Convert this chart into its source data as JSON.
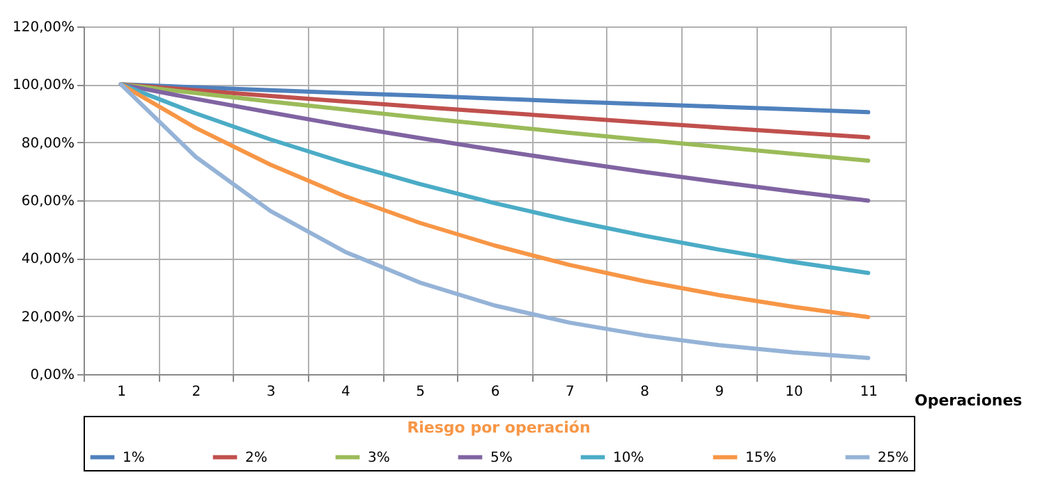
{
  "chart_data": {
    "type": "line",
    "xlabel": "Operaciones",
    "legend_title": "Riesgo por operación",
    "categories": [
      "1",
      "2",
      "3",
      "4",
      "5",
      "6",
      "7",
      "8",
      "9",
      "10",
      "11"
    ],
    "series": [
      {
        "name": "1%",
        "color": "#4f81bd",
        "values": [
          100,
          99,
          98.0,
          97.0,
          96.1,
          95.1,
          94.1,
          93.2,
          92.3,
          91.4,
          90.4
        ]
      },
      {
        "name": "2%",
        "color": "#c0504d",
        "values": [
          100,
          98,
          96.0,
          94.1,
          92.2,
          90.4,
          88.6,
          86.8,
          85.1,
          83.4,
          81.7
        ]
      },
      {
        "name": "3%",
        "color": "#9bbb59",
        "values": [
          100,
          97,
          94.1,
          91.3,
          88.5,
          85.9,
          83.3,
          80.8,
          78.4,
          76.0,
          73.7
        ]
      },
      {
        "name": "5%",
        "color": "#8064a2",
        "values": [
          100,
          95,
          90.3,
          85.7,
          81.5,
          77.4,
          73.5,
          69.8,
          66.3,
          63.0,
          59.9
        ]
      },
      {
        "name": "10%",
        "color": "#4bacc6",
        "values": [
          100,
          90,
          81.0,
          72.9,
          65.6,
          59.0,
          53.1,
          47.8,
          43.0,
          38.7,
          34.9
        ]
      },
      {
        "name": "15%",
        "color": "#f79646",
        "values": [
          100,
          85,
          72.3,
          61.4,
          52.2,
          44.4,
          37.7,
          32.1,
          27.3,
          23.2,
          19.7
        ]
      },
      {
        "name": "25%",
        "color": "#95b3d7",
        "values": [
          100,
          75,
          56.3,
          42.2,
          31.6,
          23.7,
          17.8,
          13.4,
          10.0,
          7.5,
          5.6
        ]
      }
    ],
    "ylim": [
      0,
      120
    ],
    "yticks": [
      {
        "value": 0,
        "label": "0,00%"
      },
      {
        "value": 20,
        "label": "20,00%"
      },
      {
        "value": 40,
        "label": "40,00%"
      },
      {
        "value": 60,
        "label": "60,00%"
      },
      {
        "value": 80,
        "label": "80,00%"
      },
      {
        "value": 100,
        "label": "100,00%"
      },
      {
        "value": 120,
        "label": "120,00%"
      }
    ],
    "grid": true,
    "legend": "bottom",
    "marker": "none",
    "line_style": "solid"
  }
}
